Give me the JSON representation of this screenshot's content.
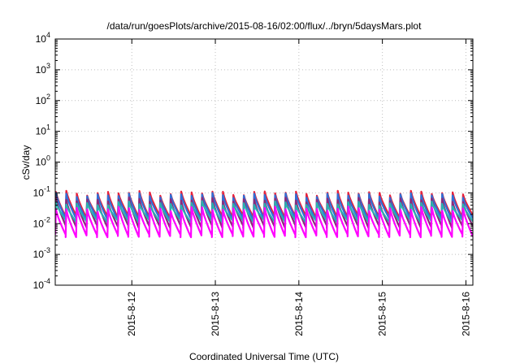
{
  "chart_data": {
    "type": "line",
    "title": "/data/run/goesPlots/archive/2015-08-16/02:00/flux/../bryn/5daysMars.plot",
    "xlabel": "Coordinated Universal Time (UTC)",
    "ylabel": "cSv/day",
    "yscale": "log",
    "ylim": [
      0.0001,
      10000
    ],
    "grid": true,
    "x_start": "2015-08-11T02:00",
    "x_end": "2015-08-16T02:00",
    "x_ticks": [
      {
        "label": "2015-8-12",
        "value": "2015-08-12T00:00"
      },
      {
        "label": "2015-8-13",
        "value": "2015-08-13T00:00"
      },
      {
        "label": "2015-8-14",
        "value": "2015-08-14T00:00"
      },
      {
        "label": "2015-8-15",
        "value": "2015-08-15T00:00"
      },
      {
        "label": "2015-8-16",
        "value": "2015-08-16T00:00"
      }
    ],
    "y_ticks": [
      {
        "base": "10",
        "exp": "4",
        "value": 10000
      },
      {
        "base": "10",
        "exp": "3",
        "value": 1000
      },
      {
        "base": "10",
        "exp": "2",
        "value": 100
      },
      {
        "base": "10",
        "exp": "1",
        "value": 10
      },
      {
        "base": "10",
        "exp": "0",
        "value": 1
      },
      {
        "base": "10",
        "exp": "-1",
        "value": 0.1
      },
      {
        "base": "10",
        "exp": "-2",
        "value": 0.01
      },
      {
        "base": "10",
        "exp": "-3",
        "value": 0.001
      },
      {
        "base": "10",
        "exp": "-4",
        "value": 0.0001
      }
    ],
    "cycle_hours": 3,
    "series": [
      {
        "color": "#e8203a",
        "peak": 0.1,
        "trough": 0.017
      },
      {
        "color": "#2f6fd6",
        "peak": 0.085,
        "trough": 0.014
      },
      {
        "color": "#8a2a7a",
        "peak": 0.06,
        "trough": 0.008
      },
      {
        "color": "#2ab0b0",
        "peak": 0.045,
        "trough": 0.012
      },
      {
        "color": "#ff00ff",
        "peak": 0.03,
        "trough": 0.004
      }
    ]
  }
}
